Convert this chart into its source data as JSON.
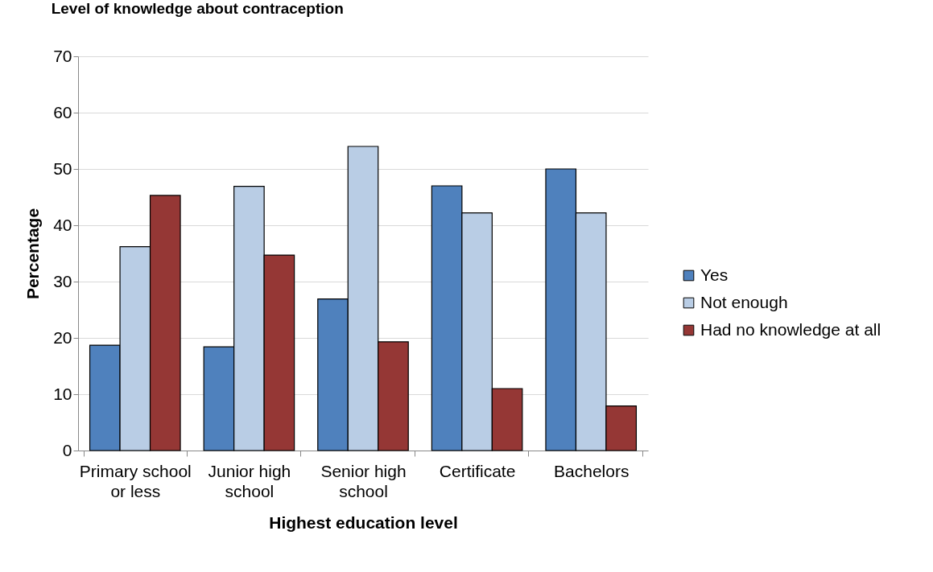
{
  "chart_data": {
    "type": "bar",
    "title": "Level of knowledge about contraception",
    "xlabel": "Highest education level",
    "ylabel": "Percentage",
    "categories": [
      "Primary school or less",
      "Junior high school",
      "Senior high school",
      "Certificate",
      "Bachelors"
    ],
    "series": [
      {
        "name": "Yes",
        "color": "#4f81bd",
        "values": [
          18.7,
          18.4,
          26.9,
          47,
          50
        ]
      },
      {
        "name": "Not enough",
        "color": "#b9cde5",
        "values": [
          36.2,
          46.9,
          54,
          42.2,
          42.2
        ]
      },
      {
        "name": "Had no knowledge at all",
        "color": "#953735",
        "values": [
          45.3,
          34.7,
          19.3,
          11,
          7.9
        ]
      }
    ],
    "ylim": [
      0,
      70
    ],
    "yticks": [
      0,
      10,
      20,
      30,
      40,
      50,
      60,
      70
    ],
    "grid": "y",
    "legend": "right"
  }
}
